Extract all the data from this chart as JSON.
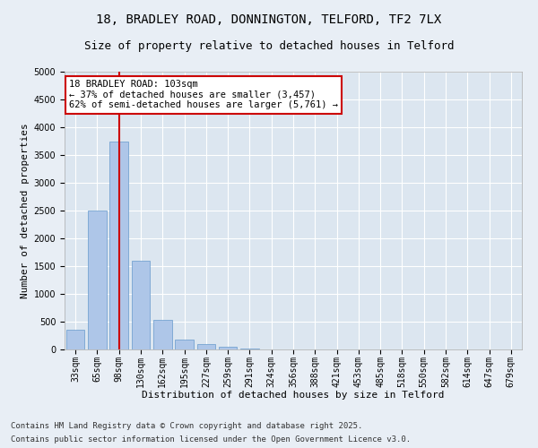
{
  "title_line1": "18, BRADLEY ROAD, DONNINGTON, TELFORD, TF2 7LX",
  "title_line2": "Size of property relative to detached houses in Telford",
  "xlabel": "Distribution of detached houses by size in Telford",
  "ylabel": "Number of detached properties",
  "categories": [
    "33sqm",
    "65sqm",
    "98sqm",
    "130sqm",
    "162sqm",
    "195sqm",
    "227sqm",
    "259sqm",
    "291sqm",
    "324sqm",
    "356sqm",
    "388sqm",
    "421sqm",
    "453sqm",
    "485sqm",
    "518sqm",
    "550sqm",
    "582sqm",
    "614sqm",
    "647sqm",
    "679sqm"
  ],
  "values": [
    350,
    2500,
    3750,
    1600,
    530,
    170,
    90,
    50,
    10,
    3,
    1,
    0,
    0,
    0,
    0,
    0,
    0,
    0,
    0,
    0,
    0
  ],
  "bar_color": "#aec6e8",
  "bar_edge_color": "#6699cc",
  "vline_x": 2,
  "vline_color": "#cc0000",
  "annotation_text": "18 BRADLEY ROAD: 103sqm\n← 37% of detached houses are smaller (3,457)\n62% of semi-detached houses are larger (5,761) →",
  "annotation_box_color": "#ffffff",
  "annotation_box_edge": "#cc0000",
  "ylim": [
    0,
    5000
  ],
  "yticks": [
    0,
    500,
    1000,
    1500,
    2000,
    2500,
    3000,
    3500,
    4000,
    4500,
    5000
  ],
  "background_color": "#e8eef5",
  "plot_bg_color": "#dce6f0",
  "footer_line1": "Contains HM Land Registry data © Crown copyright and database right 2025.",
  "footer_line2": "Contains public sector information licensed under the Open Government Licence v3.0.",
  "title_fontsize": 10,
  "subtitle_fontsize": 9,
  "xlabel_fontsize": 8,
  "ylabel_fontsize": 8,
  "tick_fontsize": 7,
  "footer_fontsize": 6.5,
  "annot_fontsize": 7.5
}
